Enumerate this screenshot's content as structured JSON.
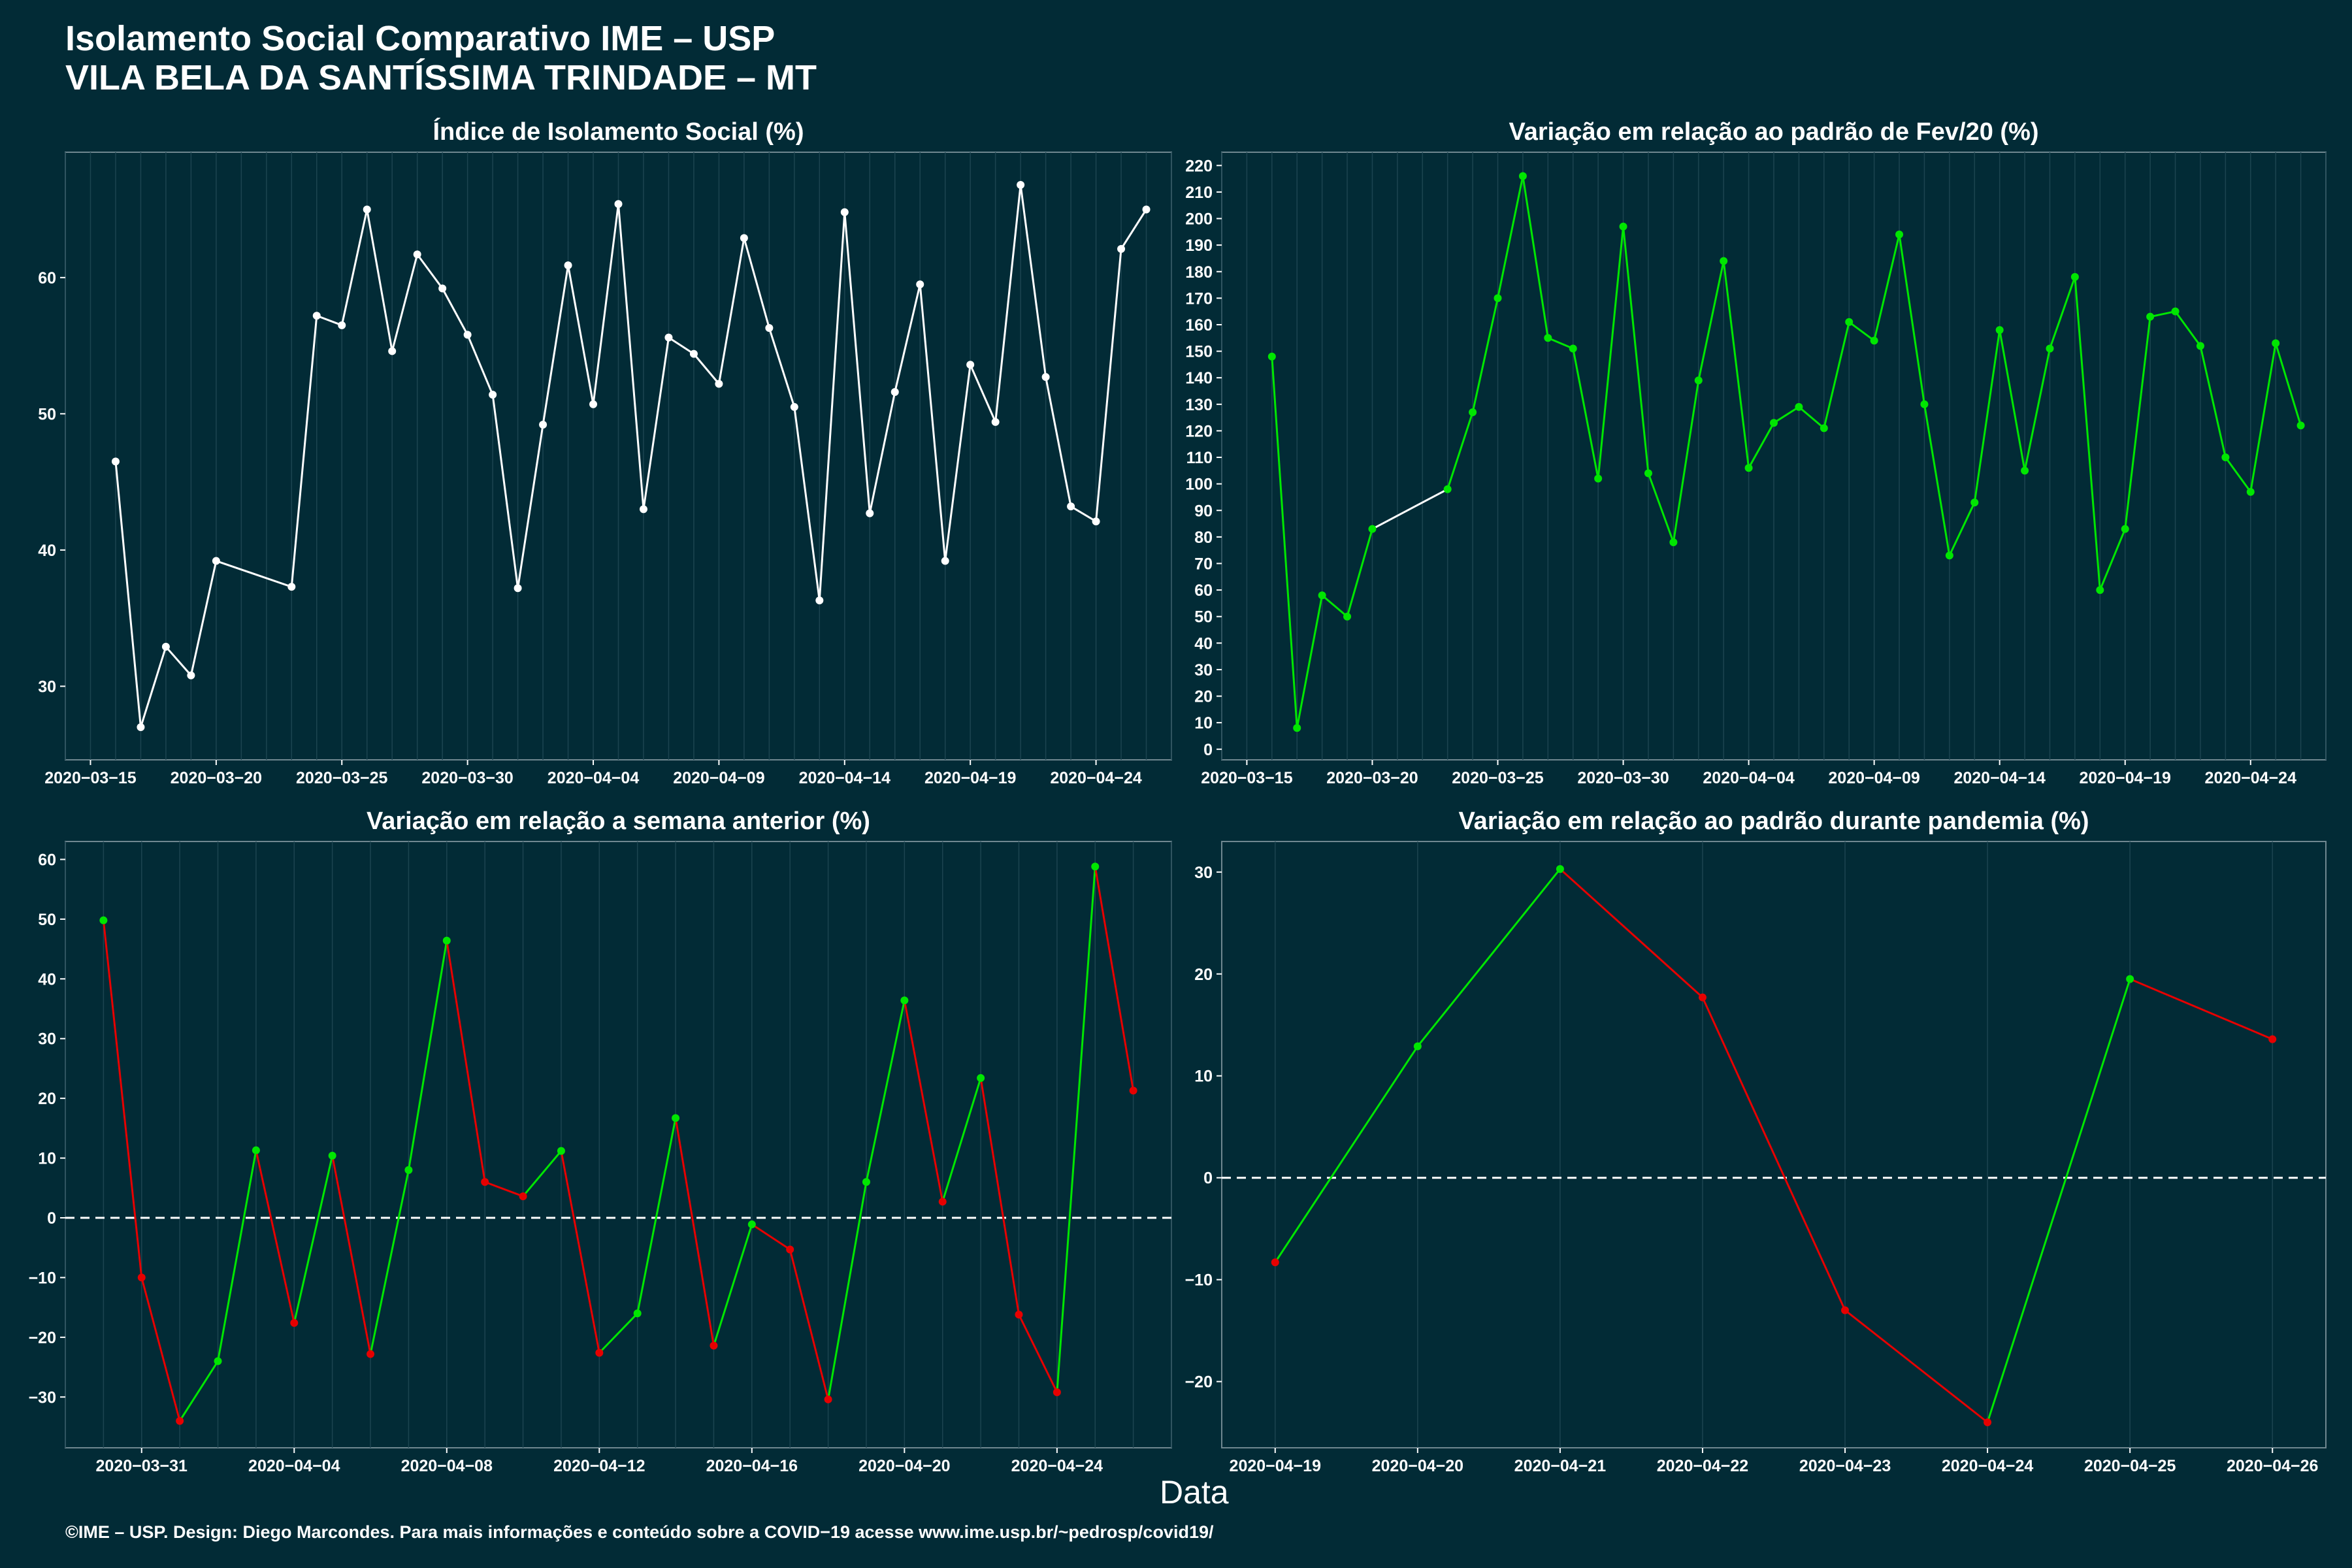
{
  "header": {
    "title_line1": "Isolamento Social Comparativo IME – USP",
    "title_line2": "VILA BELA DA SANTÍSSIMA TRINDADE – MT"
  },
  "footer": "©IME – USP. Design: Diego Marcondes. Para mais informações e conteúdo sobre a COVID−19 acesse www.ime.usp.br/~pedrosp/covid19/",
  "x_axis_label": "Data",
  "colors": {
    "background": "#022b36",
    "positive": "#00e600",
    "negative": "#e60000",
    "neutral": "#ffffff",
    "grid": "#1c4450"
  },
  "chart_data": [
    {
      "type": "line",
      "title": "Índice de Isolamento Social (%)",
      "x_ticks": [
        "2020−03−15",
        "2020−03−20",
        "2020−03−25",
        "2020−03−30",
        "2020−04−04",
        "2020−04−09",
        "2020−04−14",
        "2020−04−19",
        "2020−04−24"
      ],
      "y_ticks": [
        30,
        40,
        50,
        60
      ],
      "xlim": [
        "2020-03-14",
        "2020-04-27"
      ],
      "ylim": [
        24.6,
        69.2
      ],
      "color_mode": "white",
      "x": [
        "2020-03-16",
        "2020-03-17",
        "2020-03-18",
        "2020-03-19",
        "2020-03-20",
        "2020-03-23",
        "2020-03-24",
        "2020-03-25",
        "2020-03-26",
        "2020-03-27",
        "2020-03-28",
        "2020-03-29",
        "2020-03-30",
        "2020-03-31",
        "2020-04-01",
        "2020-04-02",
        "2020-04-03",
        "2020-04-04",
        "2020-04-05",
        "2020-04-06",
        "2020-04-07",
        "2020-04-08",
        "2020-04-09",
        "2020-04-10",
        "2020-04-11",
        "2020-04-12",
        "2020-04-13",
        "2020-04-14",
        "2020-04-15",
        "2020-04-16",
        "2020-04-17",
        "2020-04-18",
        "2020-04-19",
        "2020-04-20",
        "2020-04-21",
        "2020-04-22",
        "2020-04-23",
        "2020-04-24",
        "2020-04-25",
        "2020-04-26"
      ],
      "values": [
        46.5,
        27.0,
        32.9,
        30.8,
        39.2,
        37.3,
        57.2,
        56.5,
        65.0,
        54.6,
        61.7,
        59.2,
        55.8,
        51.4,
        37.2,
        49.2,
        60.9,
        50.7,
        65.4,
        43.0,
        55.6,
        54.4,
        52.2,
        62.9,
        56.3,
        50.5,
        36.3,
        64.8,
        42.7,
        51.6,
        59.5,
        39.2,
        53.6,
        49.4,
        66.8,
        52.7,
        43.2,
        42.1,
        62.1,
        65.0
      ]
    },
    {
      "type": "line",
      "title": "Variação em relação ao padrão de Fev/20 (%)",
      "x_ticks": [
        "2020−03−15",
        "2020−03−20",
        "2020−03−25",
        "2020−03−30",
        "2020−04−04",
        "2020−04−09",
        "2020−04−14",
        "2020−04−19",
        "2020−04−24"
      ],
      "y_ticks": [
        0,
        10,
        20,
        30,
        40,
        50,
        60,
        70,
        80,
        90,
        100,
        110,
        120,
        130,
        140,
        150,
        160,
        170,
        180,
        190,
        200,
        210,
        220
      ],
      "xlim": [
        "2020-03-14",
        "2020-04-27"
      ],
      "ylim": [
        -4,
        225
      ],
      "color_mode": "positive",
      "x": [
        "2020-03-16",
        "2020-03-17",
        "2020-03-18",
        "2020-03-19",
        "2020-03-20",
        "2020-03-23",
        "2020-03-24",
        "2020-03-25",
        "2020-03-26",
        "2020-03-27",
        "2020-03-28",
        "2020-03-29",
        "2020-03-30",
        "2020-03-31",
        "2020-04-01",
        "2020-04-02",
        "2020-04-03",
        "2020-04-04",
        "2020-04-05",
        "2020-04-06",
        "2020-04-07",
        "2020-04-08",
        "2020-04-09",
        "2020-04-10",
        "2020-04-11",
        "2020-04-12",
        "2020-04-13",
        "2020-04-14",
        "2020-04-15",
        "2020-04-16",
        "2020-04-17",
        "2020-04-18",
        "2020-04-19",
        "2020-04-20",
        "2020-04-21",
        "2020-04-22",
        "2020-04-23",
        "2020-04-24",
        "2020-04-25",
        "2020-04-26"
      ],
      "values": [
        148,
        8,
        58,
        50,
        83,
        98,
        127,
        170,
        216,
        155,
        151,
        102,
        197,
        104,
        78,
        139,
        184,
        106,
        123,
        129,
        121,
        161,
        154,
        194,
        130,
        73,
        93,
        158,
        105,
        151,
        178,
        60,
        83,
        163,
        165,
        152,
        110,
        97,
        153,
        122
      ],
      "segment_override_white": [
        4
      ]
    },
    {
      "type": "line",
      "title": "Variação em relação a semana anterior (%)",
      "x_ticks": [
        "2020−03−31",
        "2020−04−04",
        "2020−04−08",
        "2020−04−12",
        "2020−04−16",
        "2020−04−20",
        "2020−04−24"
      ],
      "y_ticks": [
        -30,
        -20,
        -10,
        0,
        10,
        20,
        30,
        40,
        50,
        60
      ],
      "xlim": [
        "2020-03-29",
        "2020-04-27"
      ],
      "ylim": [
        -38.5,
        63
      ],
      "color_mode": "slope",
      "reference_line": 0,
      "x": [
        "2020-03-30",
        "2020-03-31",
        "2020-04-01",
        "2020-04-02",
        "2020-04-03",
        "2020-04-04",
        "2020-04-05",
        "2020-04-06",
        "2020-04-07",
        "2020-04-08",
        "2020-04-09",
        "2020-04-10",
        "2020-04-11",
        "2020-04-12",
        "2020-04-13",
        "2020-04-14",
        "2020-04-15",
        "2020-04-16",
        "2020-04-17",
        "2020-04-18",
        "2020-04-19",
        "2020-04-20",
        "2020-04-21",
        "2020-04-22",
        "2020-04-23",
        "2020-04-24",
        "2020-04-25",
        "2020-04-26"
      ],
      "values": [
        49.8,
        -10.0,
        -34.0,
        -24.0,
        11.3,
        -17.6,
        10.4,
        -22.8,
        8.0,
        46.4,
        6.0,
        3.6,
        11.2,
        -22.6,
        -16.0,
        16.7,
        -21.4,
        -1.1,
        -5.3,
        -30.4,
        6.0,
        36.4,
        2.7,
        23.4,
        -16.2,
        -29.2,
        58.8,
        21.3
      ]
    },
    {
      "type": "line",
      "title": "Variação em relação ao padrão durante pandemia (%)",
      "x_ticks": [
        "2020−04−19",
        "2020−04−20",
        "2020−04−21",
        "2020−04−22",
        "2020−04−23",
        "2020−04−24",
        "2020−04−25",
        "2020−04−26"
      ],
      "y_ticks": [
        -20,
        -10,
        0,
        10,
        20,
        30
      ],
      "xlim": [
        "2020-04-18 15:00",
        "2020-04-26 09:00"
      ],
      "ylim": [
        -26.5,
        33
      ],
      "color_mode": "slope",
      "reference_line": 0,
      "x": [
        "2020-04-19",
        "2020-04-20",
        "2020-04-21",
        "2020-04-22",
        "2020-04-23",
        "2020-04-24",
        "2020-04-25",
        "2020-04-26"
      ],
      "values": [
        -8.3,
        12.9,
        30.3,
        17.7,
        -13.0,
        -24.0,
        19.5,
        13.6
      ]
    }
  ]
}
